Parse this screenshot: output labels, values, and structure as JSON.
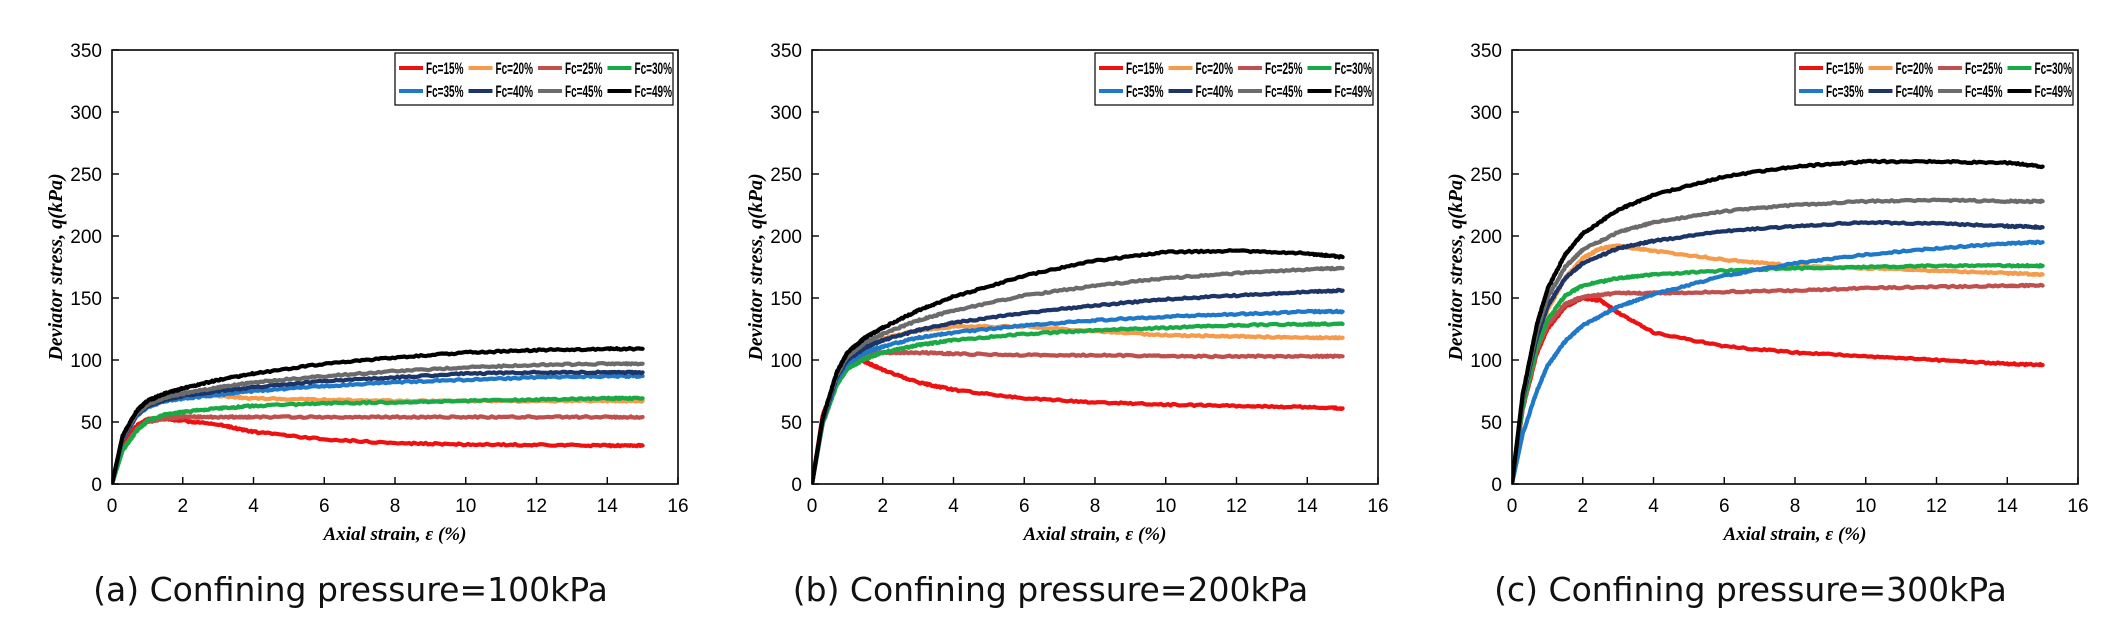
{
  "chart_data": [
    {
      "type": "line",
      "caption": "(a) Confining pressure=100kPa",
      "xlabel": "Axial strain, ε (%)",
      "ylabel": "Deviator stress,  q(kPa)",
      "xlim": [
        0,
        16
      ],
      "ylim": [
        0,
        350
      ],
      "xticks": [
        0,
        2,
        4,
        6,
        8,
        10,
        12,
        14,
        16
      ],
      "yticks": [
        0,
        50,
        100,
        150,
        200,
        250,
        300,
        350
      ],
      "legend_position": "top-right",
      "series": [
        {
          "name": "Fc=15%",
          "color": "#ee1111",
          "x": [
            0,
            0.3,
            0.7,
            1.0,
            1.3,
            2.0,
            3.0,
            4.0,
            6.0,
            8.0,
            10.0,
            12.0,
            14.0,
            15.0
          ],
          "y": [
            0,
            32,
            47,
            52,
            53,
            51,
            48,
            42,
            36,
            33,
            32,
            31.5,
            31,
            31
          ]
        },
        {
          "name": "Fc=20%",
          "color": "#f59b4b",
          "x": [
            0,
            0.3,
            0.7,
            1.0,
            1.5,
            2.0,
            3.0,
            4.0,
            6.0,
            8.0,
            10.0,
            12.0,
            14.0,
            15.0
          ],
          "y": [
            0,
            38,
            58,
            66,
            71,
            72,
            71,
            69,
            68,
            67,
            67,
            67,
            67,
            67
          ]
        },
        {
          "name": "Fc=25%",
          "color": "#c0504d",
          "x": [
            0,
            0.3,
            0.7,
            1.0,
            1.5,
            2.0,
            3.0,
            4.0,
            6.0,
            8.0,
            10.0,
            12.0,
            14.0,
            15.0
          ],
          "y": [
            0,
            28,
            44,
            50,
            53,
            54,
            54,
            54,
            54,
            54,
            54,
            54,
            54,
            54
          ]
        },
        {
          "name": "Fc=30%",
          "color": "#1aaa45",
          "x": [
            0,
            0.3,
            0.7,
            1.0,
            1.5,
            2.0,
            3.0,
            4.0,
            6.0,
            8.0,
            10.0,
            12.0,
            14.0,
            15.0
          ],
          "y": [
            0,
            27,
            43,
            51,
            56,
            58,
            61,
            63,
            65,
            66,
            67,
            68,
            69,
            69
          ]
        },
        {
          "name": "Fc=35%",
          "color": "#1f78c8",
          "x": [
            0,
            0.3,
            0.7,
            1.0,
            1.5,
            2.0,
            3.0,
            4.0,
            6.0,
            8.0,
            10.0,
            12.0,
            14.0,
            15.0
          ],
          "y": [
            0,
            36,
            55,
            62,
            67,
            69,
            72,
            75,
            79,
            82,
            84,
            86,
            87,
            87
          ]
        },
        {
          "name": "Fc=40%",
          "color": "#1c3466",
          "x": [
            0,
            0.3,
            0.7,
            1.0,
            1.5,
            2.0,
            3.0,
            4.0,
            6.0,
            8.0,
            10.0,
            12.0,
            14.0,
            15.0
          ],
          "y": [
            0,
            37,
            56,
            63,
            68,
            71,
            75,
            78,
            83,
            86,
            89,
            90,
            90,
            90
          ]
        },
        {
          "name": "Fc=45%",
          "color": "#6b6b6b",
          "x": [
            0,
            0.3,
            0.7,
            1.0,
            1.5,
            2.0,
            3.0,
            4.0,
            6.0,
            8.0,
            10.0,
            12.0,
            14.0,
            15.0
          ],
          "y": [
            0,
            38,
            57,
            64,
            70,
            73,
            78,
            82,
            87,
            91,
            94,
            96,
            97,
            97
          ]
        },
        {
          "name": "Fc=49%",
          "color": "#000000",
          "x": [
            0,
            0.3,
            0.7,
            1.0,
            1.5,
            2.0,
            3.0,
            4.0,
            6.0,
            8.0,
            10.0,
            12.0,
            14.0,
            15.0
          ],
          "y": [
            0,
            39,
            59,
            67,
            73,
            77,
            84,
            89,
            97,
            102,
            106,
            108,
            109,
            109
          ]
        }
      ]
    },
    {
      "type": "line",
      "caption": "(b) Confining pressure=200kPa",
      "xlabel": "Axial strain, ε (%)",
      "ylabel": "Deviator stress,  q(kPa)",
      "xlim": [
        0,
        16
      ],
      "ylim": [
        0,
        350
      ],
      "xticks": [
        0,
        2,
        4,
        6,
        8,
        10,
        12,
        14,
        16
      ],
      "yticks": [
        0,
        50,
        100,
        150,
        200,
        250,
        300,
        350
      ],
      "legend_position": "top-right",
      "series": [
        {
          "name": "Fc=15%",
          "color": "#ee1111",
          "x": [
            0,
            0.3,
            0.7,
            1.0,
            1.4,
            2.0,
            3.0,
            4.0,
            6.0,
            8.0,
            10.0,
            12.0,
            14.0,
            15.0
          ],
          "y": [
            0,
            55,
            85,
            97,
            100,
            92,
            82,
            76,
            69,
            66,
            64,
            63,
            62,
            61
          ]
        },
        {
          "name": "Fc=20%",
          "color": "#f59b4b",
          "x": [
            0,
            0.3,
            0.7,
            1.0,
            1.5,
            2.0,
            3.0,
            4.0,
            6.0,
            8.0,
            10.0,
            12.0,
            14.0,
            15.0
          ],
          "y": [
            0,
            50,
            85,
            100,
            110,
            117,
            124,
            127,
            127,
            123,
            120,
            119,
            118,
            118
          ]
        },
        {
          "name": "Fc=25%",
          "color": "#c0504d",
          "x": [
            0,
            0.3,
            0.7,
            1.0,
            1.5,
            2.0,
            3.0,
            4.0,
            6.0,
            8.0,
            10.0,
            12.0,
            14.0,
            15.0
          ],
          "y": [
            0,
            50,
            85,
            98,
            104,
            106,
            106,
            105,
            104,
            104,
            103,
            103,
            103,
            103
          ]
        },
        {
          "name": "Fc=30%",
          "color": "#1aaa45",
          "x": [
            0,
            0.3,
            0.7,
            1.0,
            1.5,
            2.0,
            3.0,
            4.0,
            6.0,
            8.0,
            10.0,
            12.0,
            14.0,
            15.0
          ],
          "y": [
            0,
            48,
            80,
            93,
            101,
            106,
            112,
            116,
            121,
            124,
            126,
            128,
            129,
            129
          ]
        },
        {
          "name": "Fc=35%",
          "color": "#1f78c8",
          "x": [
            0,
            0.3,
            0.7,
            1.0,
            1.5,
            2.0,
            3.0,
            4.0,
            6.0,
            8.0,
            10.0,
            12.0,
            14.0,
            15.0
          ],
          "y": [
            0,
            50,
            84,
            97,
            106,
            111,
            118,
            122,
            128,
            132,
            135,
            137,
            139,
            139
          ]
        },
        {
          "name": "Fc=40%",
          "color": "#1c3466",
          "x": [
            0,
            0.3,
            0.7,
            1.0,
            1.5,
            2.0,
            3.0,
            4.0,
            6.0,
            8.0,
            10.0,
            12.0,
            14.0,
            15.0
          ],
          "y": [
            0,
            51,
            86,
            100,
            110,
            116,
            124,
            130,
            138,
            144,
            149,
            152,
            155,
            156
          ]
        },
        {
          "name": "Fc=45%",
          "color": "#6b6b6b",
          "x": [
            0,
            0.3,
            0.7,
            1.0,
            1.5,
            2.0,
            3.0,
            4.0,
            6.0,
            8.0,
            10.0,
            12.0,
            14.0,
            15.0
          ],
          "y": [
            0,
            52,
            88,
            103,
            114,
            121,
            132,
            140,
            152,
            160,
            166,
            170,
            173,
            174
          ]
        },
        {
          "name": "Fc=49%",
          "color": "#000000",
          "x": [
            0,
            0.3,
            0.7,
            1.0,
            1.5,
            2.0,
            3.0,
            4.0,
            6.0,
            8.0,
            10.0,
            12.0,
            14.0,
            15.0
          ],
          "y": [
            0,
            53,
            90,
            106,
            118,
            126,
            140,
            151,
            168,
            180,
            187,
            188,
            186,
            183
          ]
        }
      ]
    },
    {
      "type": "line",
      "caption": "(c) Confining pressure=300kPa",
      "xlabel": "Axial strain, ε (%)",
      "ylabel": "Deviator stress,  q(kPa)",
      "xlim": [
        0,
        16
      ],
      "ylim": [
        0,
        350
      ],
      "xticks": [
        0,
        2,
        4,
        6,
        8,
        10,
        12,
        14,
        16
      ],
      "yticks": [
        0,
        50,
        100,
        150,
        200,
        250,
        300,
        350
      ],
      "legend_position": "top-right",
      "series": [
        {
          "name": "Fc=15%",
          "color": "#ee1111",
          "x": [
            0,
            0.3,
            0.7,
            1.0,
            1.5,
            2.0,
            2.5,
            3.0,
            4.0,
            6.0,
            8.0,
            10.0,
            12.0,
            14.0,
            15.0
          ],
          "y": [
            0,
            60,
            105,
            125,
            143,
            150,
            148,
            138,
            122,
            111,
            106,
            103,
            100,
            97,
            96
          ]
        },
        {
          "name": "Fc=20%",
          "color": "#f59b4b",
          "x": [
            0,
            0.3,
            0.7,
            1.0,
            1.5,
            2.0,
            2.5,
            3.0,
            4.0,
            6.0,
            8.0,
            10.0,
            12.0,
            14.0,
            15.0
          ],
          "y": [
            0,
            65,
            115,
            140,
            166,
            182,
            190,
            192,
            188,
            181,
            176,
            174,
            172,
            170,
            169
          ]
        },
        {
          "name": "Fc=25%",
          "color": "#c0504d",
          "x": [
            0,
            0.3,
            0.7,
            1.0,
            1.5,
            2.0,
            3.0,
            4.0,
            6.0,
            8.0,
            10.0,
            12.0,
            14.0,
            15.0
          ],
          "y": [
            0,
            60,
            108,
            128,
            145,
            151,
            154,
            154,
            155,
            156,
            158,
            159,
            160,
            160
          ]
        },
        {
          "name": "Fc=30%",
          "color": "#1aaa45",
          "x": [
            0,
            0.3,
            0.7,
            1.0,
            1.5,
            2.0,
            3.0,
            4.0,
            6.0,
            8.0,
            10.0,
            12.0,
            14.0,
            15.0
          ],
          "y": [
            0,
            62,
            110,
            132,
            152,
            160,
            166,
            169,
            172,
            174,
            175,
            176,
            176,
            176
          ]
        },
        {
          "name": "Fc=35%",
          "color": "#1f78c8",
          "x": [
            0,
            0.3,
            0.7,
            1.0,
            1.5,
            2.0,
            3.0,
            4.0,
            6.0,
            8.0,
            10.0,
            12.0,
            14.0,
            15.0
          ],
          "y": [
            0,
            40,
            75,
            95,
            115,
            128,
            143,
            153,
            168,
            178,
            185,
            190,
            194,
            195
          ]
        },
        {
          "name": "Fc=40%",
          "color": "#1c3466",
          "x": [
            0,
            0.3,
            0.7,
            1.0,
            1.5,
            2.0,
            3.0,
            4.0,
            6.0,
            8.0,
            10.0,
            12.0,
            14.0,
            15.0
          ],
          "y": [
            0,
            68,
            118,
            143,
            166,
            178,
            190,
            196,
            204,
            208,
            211,
            210,
            208,
            207
          ]
        },
        {
          "name": "Fc=45%",
          "color": "#6b6b6b",
          "x": [
            0,
            0.3,
            0.7,
            1.0,
            1.5,
            2.0,
            3.0,
            4.0,
            6.0,
            8.0,
            10.0,
            12.0,
            14.0,
            15.0
          ],
          "y": [
            0,
            70,
            123,
            150,
            175,
            189,
            203,
            211,
            220,
            225,
            228,
            229,
            228,
            228
          ]
        },
        {
          "name": "Fc=49%",
          "color": "#000000",
          "x": [
            0,
            0.3,
            0.7,
            1.0,
            1.5,
            2.0,
            3.0,
            4.0,
            6.0,
            8.0,
            10.0,
            12.0,
            14.0,
            15.0
          ],
          "y": [
            0,
            72,
            128,
            157,
            185,
            202,
            221,
            233,
            248,
            256,
            260,
            260,
            259,
            256
          ]
        }
      ]
    }
  ]
}
